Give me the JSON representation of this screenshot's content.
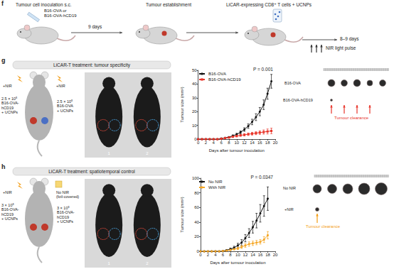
{
  "panel_f": {
    "label": "f",
    "inoculation": "Tumour cell inoculation s.c.",
    "cell_lines": [
      "B16-OVA or",
      "B16-OVA-hCD19"
    ],
    "interval": "9 days",
    "establishment": "Tumour establishment",
    "treatment": "LiCAR-expressing CD8⁺ T cells + UCNPs",
    "duration": "8–9 days",
    "light": "NIR light pulse"
  },
  "panel_g": {
    "label": "g",
    "header": "LiCAR-T treatment: tumour specificity",
    "injections": [
      {
        "light": [
          "+NIR"
        ],
        "dose": "2.5 × 10⁵",
        "cells": [
          "B16-OVA-",
          "hCD19",
          "+ UCNPs"
        ]
      },
      {
        "light": [
          "+NIR"
        ],
        "dose": "2.5 × 10⁵",
        "cells": [
          "B16-OVA",
          "+ UCNPs"
        ]
      }
    ],
    "mice": [
      "1",
      "2"
    ],
    "tumour_rows": [
      "B16-OVA",
      "B16-OVA-hCD19"
    ],
    "note": "Tumour clearance"
  },
  "panel_h": {
    "label": "h",
    "header": "LiCAR-T treatment: spatiotemporal control",
    "injections": [
      {
        "light": [
          "+NIR"
        ],
        "dose": "3 × 10⁵",
        "cells": [
          "B16-OVA-",
          "hCD19",
          "+ UCNPs"
        ]
      },
      {
        "light": [
          "No NIR",
          "(foil-covered)"
        ],
        "dose": "3 × 10⁵",
        "cells": [
          "B16-OVA-",
          "hCD19",
          "+ UCNPs"
        ]
      }
    ],
    "mice": [
      "1",
      "2"
    ],
    "tumour_rows": [
      "No NIR",
      "+NIR"
    ],
    "note": "Tumour clearance"
  },
  "chart_data": [
    {
      "type": "line",
      "annotation": "P = 0.001",
      "x_label": "Days after tumour inoculation",
      "y_label": "Tumour size (mm²)",
      "x": [
        0,
        1,
        2,
        3,
        4,
        5,
        6,
        7,
        8,
        9,
        10,
        11,
        12,
        13,
        14,
        15,
        16,
        17,
        18,
        19
      ],
      "xlim": [
        0,
        20
      ],
      "xticks": [
        0,
        2,
        4,
        6,
        8,
        10,
        12,
        14,
        16,
        18,
        20
      ],
      "ylim": [
        0,
        50
      ],
      "yticks": [
        0,
        10,
        20,
        30,
        40,
        50
      ],
      "grid": false,
      "legend": "upper left",
      "series": [
        {
          "name": "B16-OVA",
          "color": "#111111",
          "marker": "circle",
          "line_style": "solid",
          "values": [
            0,
            0,
            0,
            0,
            0,
            0,
            0.5,
            1,
            1.5,
            2.5,
            3.5,
            5,
            7,
            9.5,
            12.5,
            16,
            20,
            25,
            33,
            42
          ],
          "errors": [
            0,
            0,
            0,
            0,
            0,
            0,
            0.2,
            0.3,
            0.4,
            0.6,
            0.8,
            1,
            1.3,
            1.6,
            2,
            2.5,
            3,
            3.5,
            4,
            5
          ]
        },
        {
          "name": "B16-OVA-hCD19",
          "color": "#e8352a",
          "marker": "square",
          "line_style": "solid",
          "values": [
            0,
            0,
            0,
            0,
            0,
            0,
            0.3,
            0.8,
            1.2,
            1.8,
            2.3,
            2.8,
            3.2,
            3.6,
            4,
            4.4,
            4.8,
            5.2,
            5.6,
            6
          ],
          "errors": [
            0,
            0,
            0,
            0,
            0,
            0,
            0.1,
            0.3,
            0.4,
            0.5,
            0.6,
            0.7,
            0.8,
            0.9,
            1,
            1.1,
            1.3,
            1.5,
            1.8,
            2
          ]
        }
      ]
    },
    {
      "type": "line",
      "annotation": "P = 0.0347",
      "x_label": "Days after tumour inoculation",
      "y_label": "Tumour size (mm²)",
      "x": [
        0,
        1,
        2,
        3,
        4,
        5,
        6,
        7,
        8,
        9,
        10,
        11,
        12,
        13,
        14,
        15,
        16,
        17,
        18
      ],
      "xlim": [
        0,
        20
      ],
      "xticks": [
        0,
        2,
        4,
        6,
        8,
        10,
        12,
        14,
        16,
        18,
        20
      ],
      "ylim": [
        0,
        100
      ],
      "yticks": [
        0,
        20,
        40,
        60,
        80,
        100
      ],
      "grid": false,
      "legend": "upper left",
      "series": [
        {
          "name": "No NIR",
          "color": "#111111",
          "marker": "circle",
          "line_style": "solid",
          "values": [
            0,
            0,
            0,
            0,
            0,
            0,
            0.5,
            1.5,
            3,
            5,
            8,
            12,
            18,
            25,
            33,
            42,
            52,
            62,
            72
          ],
          "errors": [
            0,
            0,
            0,
            0,
            0,
            0,
            0.3,
            0.8,
            1.5,
            2,
            3,
            4,
            5,
            6,
            8,
            10,
            12,
            14,
            16
          ]
        },
        {
          "name": "With NIR",
          "color": "#f5a623",
          "marker": "circle",
          "line_style": "solid",
          "values": [
            0,
            0,
            0,
            0,
            0,
            0,
            0.5,
            1,
            2,
            3,
            4,
            6,
            8,
            10,
            11,
            12,
            13,
            16,
            22
          ],
          "errors": [
            0,
            0,
            0,
            0,
            0,
            0,
            0.2,
            0.5,
            1,
            1,
            1.5,
            2,
            2.5,
            3,
            3,
            3,
            3,
            4,
            5
          ]
        }
      ]
    }
  ]
}
